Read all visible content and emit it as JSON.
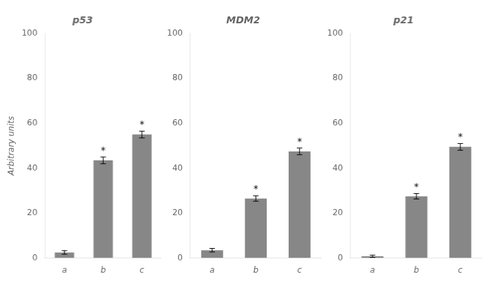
{
  "chart_data": [
    {
      "type": "bar",
      "title": "p53",
      "categories": [
        "a",
        "b",
        "c"
      ],
      "values": [
        2.5,
        43.5,
        55.0
      ],
      "errors": [
        0.8,
        1.5,
        1.5
      ],
      "color": "#878787",
      "ylabel": "Arbitrary units",
      "ylim": [
        0,
        100
      ],
      "yticks": [
        0,
        20,
        40,
        60,
        80,
        100
      ],
      "grid": false,
      "annotations": [
        {
          "category": "b",
          "text": "*"
        },
        {
          "category": "c",
          "text": "*"
        }
      ]
    },
    {
      "type": "bar",
      "title": "MDM2",
      "categories": [
        "a",
        "b",
        "c"
      ],
      "values": [
        3.5,
        26.5,
        47.5
      ],
      "errors": [
        0.8,
        1.2,
        1.5
      ],
      "color": "#878787",
      "ylim": [
        0,
        100
      ],
      "yticks": [
        0,
        20,
        40,
        60,
        80,
        100
      ],
      "grid": false,
      "annotations": [
        {
          "category": "b",
          "text": "*"
        },
        {
          "category": "c",
          "text": "*"
        }
      ]
    },
    {
      "type": "bar",
      "title": "p21",
      "categories": [
        "a",
        "b",
        "c"
      ],
      "values": [
        0.8,
        27.5,
        49.5
      ],
      "errors": [
        0.5,
        1.2,
        1.5
      ],
      "color": "#878787",
      "ylim": [
        0,
        100
      ],
      "yticks": [
        0,
        20,
        40,
        60,
        80,
        100
      ],
      "grid": false,
      "annotations": [
        {
          "category": "b",
          "text": "*"
        },
        {
          "category": "c",
          "text": "*"
        }
      ]
    }
  ]
}
